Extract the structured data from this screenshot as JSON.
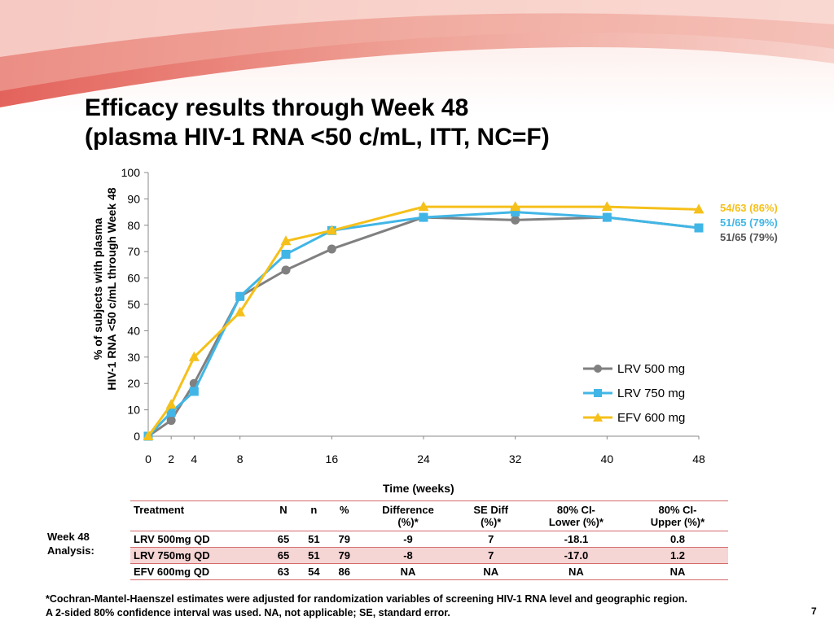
{
  "slide": {
    "title_line1": "Efficacy results through Week 48",
    "title_line2": "(plasma HIV-1 RNA <50 c/mL, ITT, NC=F)",
    "page_number": "7",
    "analysis_label_line1": "Week 48",
    "analysis_label_line2": "Analysis:",
    "footnote_line1": "*Cochran-Mantel-Haenszel estimates were adjusted for randomization variables of screening HIV-1 RNA level and geographic region.",
    "footnote_line2": "A 2-sided 80% confidence interval  was used. NA, not applicable; SE, standard error."
  },
  "colors": {
    "banner_dark": "#e0524a",
    "banner_light": "#f7cfc8",
    "table_rule": "#d46a6a",
    "table_shade": "#f6d5d5"
  },
  "chart_data": {
    "type": "line",
    "xlabel": "Time (weeks)",
    "ylabel_line1": "% of subjects with plasma",
    "ylabel_line2": "HIV-1 RNA <50 c/mL through Week 48",
    "xlim": [
      0,
      48
    ],
    "ylim": [
      0,
      100
    ],
    "xticks": [
      0,
      2,
      4,
      8,
      16,
      24,
      32,
      40,
      48
    ],
    "yticks": [
      0,
      10,
      20,
      30,
      40,
      50,
      60,
      70,
      80,
      90,
      100
    ],
    "grid": false,
    "legend_position": "bottom-right",
    "series": [
      {
        "name": "LRV 500 mg",
        "color": "#808080",
        "marker": "circle",
        "x": [
          0,
          2,
          4,
          8,
          12,
          16,
          24,
          32,
          40,
          48
        ],
        "y": [
          0,
          6,
          20,
          53,
          63,
          71,
          83,
          82,
          83,
          79
        ],
        "end_label": "51/65 (79%)"
      },
      {
        "name": "LRV 750 mg",
        "color": "#41b6e6",
        "marker": "square",
        "x": [
          0,
          2,
          4,
          8,
          12,
          16,
          24,
          32,
          40,
          48
        ],
        "y": [
          0,
          9,
          17,
          53,
          69,
          78,
          83,
          85,
          83,
          79
        ],
        "end_label": "51/65 (79%)"
      },
      {
        "name": "EFV 600 mg",
        "color": "#f5c01a",
        "marker": "triangle",
        "x": [
          0,
          2,
          4,
          8,
          12,
          16,
          24,
          32,
          40,
          48
        ],
        "y": [
          0,
          12,
          30,
          47,
          74,
          78,
          87,
          87,
          87,
          86
        ],
        "end_label": "54/63 (86%)"
      }
    ]
  },
  "table": {
    "headers": [
      [
        "Treatment",
        ""
      ],
      [
        "N",
        ""
      ],
      [
        "n",
        ""
      ],
      [
        "%",
        ""
      ],
      [
        "Difference",
        "(%)*"
      ],
      [
        "SE Diff",
        "(%)*"
      ],
      [
        "80% CI-",
        "Lower (%)*"
      ],
      [
        "80% CI-",
        "Upper (%)*"
      ]
    ],
    "rows": [
      [
        "LRV 500mg QD",
        "65",
        "51",
        "79",
        "-9",
        "7",
        "-18.1",
        "0.8"
      ],
      [
        "LRV 750mg QD",
        "65",
        "51",
        "79",
        "-8",
        "7",
        "-17.0",
        "1.2"
      ],
      [
        "EFV 600mg QD",
        "63",
        "54",
        "86",
        "NA",
        "NA",
        "NA",
        "NA"
      ]
    ]
  }
}
